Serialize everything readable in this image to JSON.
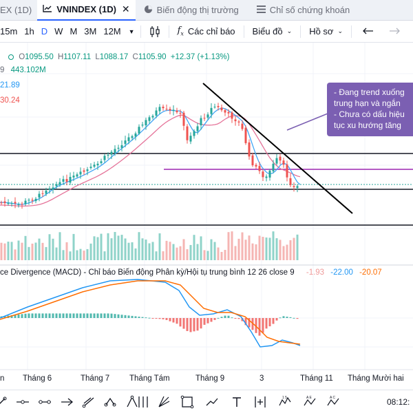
{
  "tabs": [
    {
      "label": "EX (1D)",
      "icon": "none",
      "active": false
    },
    {
      "label": "VNINDEX (1D)",
      "icon": "chart-icon",
      "active": true
    },
    {
      "label": "Biến động thị trường",
      "icon": "pie-icon",
      "active": false
    },
    {
      "label": "Chỉ số chứng khoán",
      "icon": "list-icon",
      "active": false
    }
  ],
  "toolbar": {
    "intervals": [
      "15m",
      "1h",
      "D",
      "W",
      "M",
      "3M",
      "12M"
    ],
    "selected_interval": "D",
    "indicators_label": "Các chỉ báo",
    "chart_label": "Biểu đồ",
    "profile_label": "Hồ sơ"
  },
  "ohlc": {
    "o_label": "O",
    "o_value": "1095.50",
    "h_label": "H",
    "h_value": "1107.11",
    "l_label": "L",
    "l_value": "1088.17",
    "c_label": "C",
    "c_value": "1105.90",
    "change": "+12.37 (+1.13%)"
  },
  "volume": {
    "prefix": "9",
    "value": "443.102M"
  },
  "ma_values": {
    "ma1": "21.89",
    "ma2": "30.24"
  },
  "callout": {
    "lines": [
      "- Đang trend xuống",
      "trung hạn và ngắn",
      "- Chưa có dấu hiệu",
      "tục xu hướng tăng"
    ]
  },
  "macd_legend": {
    "title": "ce Divergence (MACD) - Chỉ báo Biến động Phân kỳ/Hội tụ trung bình 12 26 close 9",
    "hist": "-1.93",
    "macd": "-22.00",
    "signal": "-20.07"
  },
  "time_axis": [
    "n",
    "Tháng 6",
    "Tháng 7",
    "Tháng Tám",
    "Tháng 9",
    "3",
    "Tháng 11",
    "Tháng Mười hai"
  ],
  "clock": "08:12:",
  "colors": {
    "up": "#26a69a",
    "down": "#ef5350",
    "ma_fast": "#42a5f5",
    "ma_slow": "#e57399",
    "trendline": "#000000",
    "purple_line": "#9c27b0",
    "callout_bg": "#7b5fb2",
    "macd_line": "#2196f3",
    "signal_line": "#ff6d00",
    "accent": "#2962ff"
  },
  "drawing_tools": [
    "crosshair-icon",
    "trendline-icon",
    "horizontal-line-icon",
    "parallel-channel-icon",
    "fib-icon",
    "pitchfork-icon",
    "brush-icon",
    "rectangle-icon",
    "path-icon",
    "arrow-icon",
    "text-icon",
    "long-position-icon",
    "pattern-abcd-icon",
    "elliott-wave-icon",
    "cycle-icon"
  ]
}
